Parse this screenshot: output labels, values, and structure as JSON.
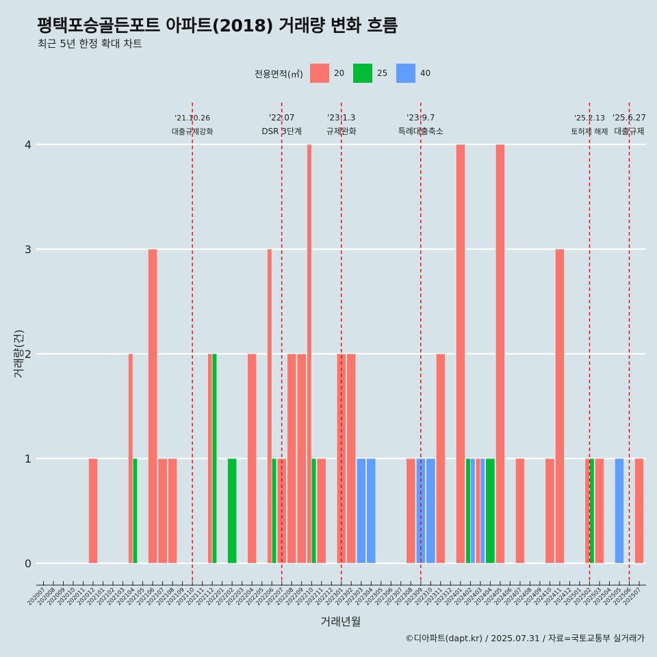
{
  "title": "평택포승골든포트 아파트(2018) 거래량 변화 흐름",
  "subtitle": "최근 5년 한정 확대 차트",
  "caption": "©디아파트(dapt.kr) / 2025.07.31 / 자료=국토교통부 실거래가",
  "legend": {
    "title": "전용면적(㎡)",
    "items": [
      {
        "label": "20",
        "color": "#f8766d"
      },
      {
        "label": "25",
        "color": "#00ba38"
      },
      {
        "label": "40",
        "color": "#619cff"
      }
    ]
  },
  "chart_data": {
    "type": "bar",
    "xlabel": "거래년월",
    "ylabel": "거래량(건)",
    "ylim": [
      0,
      4
    ],
    "yticks": [
      0,
      1,
      2,
      3,
      4
    ],
    "grid": true,
    "legend_position": "top",
    "categories": [
      "202007",
      "202008",
      "202009",
      "202010",
      "202011",
      "202012",
      "202101",
      "202102",
      "202103",
      "202104",
      "202105",
      "202106",
      "202107",
      "202108",
      "202109",
      "202110",
      "202111",
      "202112",
      "202201",
      "202202",
      "202203",
      "202204",
      "202205",
      "202206",
      "202207",
      "202208",
      "202209",
      "202210",
      "202211",
      "202212",
      "202301",
      "202302",
      "202303",
      "202304",
      "202305",
      "202306",
      "202307",
      "202308",
      "202309",
      "202310",
      "202311",
      "202312",
      "202401",
      "202402",
      "202403",
      "202404",
      "202405",
      "202406",
      "202407",
      "202408",
      "202409",
      "202410",
      "202411",
      "202412",
      "202501",
      "202502",
      "202503",
      "202504",
      "202505",
      "202506",
      "202507"
    ],
    "series": [
      {
        "name": "20",
        "color": "#f8766d",
        "values": [
          0,
          0,
          0,
          0,
          0,
          1,
          0,
          0,
          0,
          2,
          0,
          3,
          1,
          1,
          0,
          0,
          0,
          2,
          0,
          0,
          0,
          2,
          0,
          3,
          1,
          2,
          2,
          4,
          1,
          0,
          2,
          2,
          0,
          0,
          0,
          0,
          0,
          1,
          0,
          0,
          2,
          0,
          4,
          0,
          1,
          0,
          4,
          0,
          1,
          0,
          0,
          1,
          3,
          0,
          0,
          1,
          1,
          0,
          0,
          0,
          1
        ]
      },
      {
        "name": "25",
        "color": "#00ba38",
        "values": [
          0,
          0,
          0,
          0,
          0,
          0,
          0,
          0,
          0,
          1,
          0,
          0,
          0,
          0,
          0,
          0,
          0,
          2,
          0,
          1,
          0,
          0,
          0,
          1,
          0,
          0,
          0,
          1,
          0,
          0,
          0,
          0,
          0,
          0,
          0,
          0,
          0,
          0,
          0,
          0,
          0,
          0,
          0,
          1,
          0,
          1,
          0,
          0,
          0,
          0,
          0,
          0,
          0,
          0,
          0,
          1,
          0,
          0,
          0,
          0,
          0
        ]
      },
      {
        "name": "40",
        "color": "#619cff",
        "values": [
          0,
          0,
          0,
          0,
          0,
          0,
          0,
          0,
          0,
          0,
          0,
          0,
          0,
          0,
          0,
          0,
          0,
          0,
          0,
          0,
          0,
          0,
          0,
          0,
          0,
          0,
          0,
          0,
          0,
          0,
          0,
          0,
          1,
          1,
          0,
          0,
          0,
          0,
          1,
          1,
          0,
          0,
          0,
          1,
          1,
          0,
          0,
          0,
          0,
          0,
          0,
          0,
          0,
          0,
          0,
          0,
          0,
          0,
          1,
          0,
          0
        ]
      }
    ],
    "events": [
      {
        "x": "202110",
        "date": "'21.10.26",
        "label": "대출규제강화"
      },
      {
        "x": "202207",
        "date": "'22.07",
        "label": "DSR 3단계"
      },
      {
        "x": "202301",
        "date": "'23.1.3",
        "label": "규제완화"
      },
      {
        "x": "202309",
        "date": "'23.9.7",
        "label": "특례대출축소"
      },
      {
        "x": "202502",
        "date": "'25.2.13",
        "label": "토허제 해제"
      },
      {
        "x": "202506",
        "date": "'25.6.27",
        "label": "대출규제"
      }
    ]
  }
}
